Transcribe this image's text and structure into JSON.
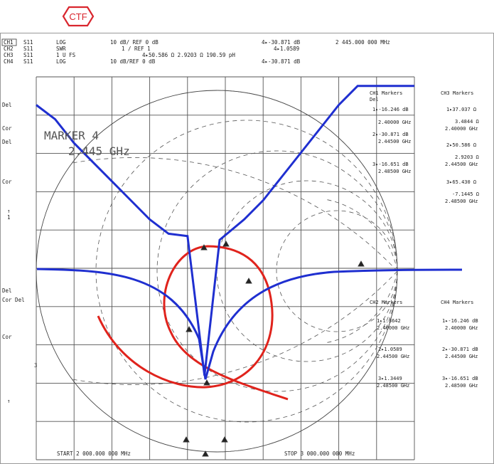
{
  "logo": {
    "text": "CTF",
    "color": "#d9262e"
  },
  "header": {
    "rows": [
      {
        "ch": "CH1",
        "param": "S11",
        "fmt": "LOG",
        "scale": "10 dB/ REF 0 dB",
        "mkr": "4▸-30.871 dB",
        "freq": "2 445.000 000 MHz"
      },
      {
        "ch": "CH2",
        "param": "S11",
        "fmt": "SWR",
        "scale": "1  / REF 1",
        "mkr": "4▸1.0589",
        "freq": ""
      },
      {
        "ch": "CH3",
        "param": "S11",
        "fmt": "1 U FS",
        "scale": "4▸50.586 Ω   2.9203 Ω  190.59 pH",
        "mkr": "",
        "freq": ""
      },
      {
        "ch": "CH4",
        "param": "S11",
        "fmt": "LOG",
        "scale": "10 dB/REF 0 dB",
        "mkr": "4▸-30.871 dB",
        "freq": ""
      }
    ]
  },
  "left_labels": [
    "Del",
    "Cor",
    "Del",
    "Cor",
    "↑",
    "1",
    "Del",
    "Cor Del",
    "Cor",
    "3",
    "↑"
  ],
  "marker_note": {
    "line1": "MARKER 4",
    "line2": "2.445 GHz"
  },
  "start_label": "START 2 000.000 000 MHz",
  "stop_label": "STOP 3 000.000 000 MHz",
  "ch1_markers": {
    "title": "CH1 Markers",
    "sub": "Del",
    "items": [
      {
        "v": "1▸-16.246 dB",
        "f": "2.40000 GHz"
      },
      {
        "v": "2▸-30.871 dB",
        "f": "2.44500 GHz"
      },
      {
        "v": "3▸-16.651 dB",
        "f": "2.48500 GHz"
      }
    ]
  },
  "ch3_markers": {
    "title": "CH3 Markers",
    "items": [
      {
        "v": "1▸37.037 Ω",
        "v2": "3.4844 Ω",
        "f": "2.40000 GHz"
      },
      {
        "v": "2▸50.586 Ω",
        "v2": "2.9203 Ω",
        "f": "2.44500 GHz"
      },
      {
        "v": "3▸65.430 Ω",
        "v2": "-7.1445 Ω",
        "f": "2.48500 GHz"
      }
    ]
  },
  "ch2_markers": {
    "title": "CH2 Markers",
    "items": [
      {
        "v": "1▸1.3642",
        "f": "2.40000 GHz"
      },
      {
        "v": "2▸1.0589",
        "f": "2.44500 GHz"
      },
      {
        "v": "3▸1.3449",
        "f": "2.48500 GHz"
      }
    ]
  },
  "ch4_markers": {
    "title": "CH4 Markers",
    "items": [
      {
        "v": "1▸-16.246 dB",
        "f": "2.40000 GHz"
      },
      {
        "v": "2▸-30.871 dB",
        "f": "2.44500 GHz"
      },
      {
        "v": "3▸-16.651 dB",
        "f": "2.48500 GHz"
      }
    ]
  },
  "chart_data": {
    "type": "line",
    "x_label": "",
    "xlim": [
      2000,
      3000
    ],
    "ylim_db": [
      -40,
      0
    ],
    "colors": {
      "return_loss": "#1f2fd0",
      "smith": "#e0231c",
      "grid": "#555555"
    },
    "series": [
      {
        "x": [
          2000,
          2050,
          2100,
          2150,
          2200,
          2250,
          2300,
          2350,
          2400,
          2445,
          2485,
          2550,
          2600,
          2650,
          2700,
          2750,
          2800,
          2850,
          2900,
          2950,
          3000
        ],
        "values": [
          -2.5,
          -4,
          -6.5,
          -8.5,
          -10.5,
          -12.5,
          -14.5,
          -16,
          -16.246,
          -30.871,
          -16.651,
          -14.5,
          -12.5,
          -10,
          -7.5,
          -5,
          -2.5,
          -0.5,
          -0.5,
          -0.5,
          -0.5
        ]
      }
    ]
  }
}
